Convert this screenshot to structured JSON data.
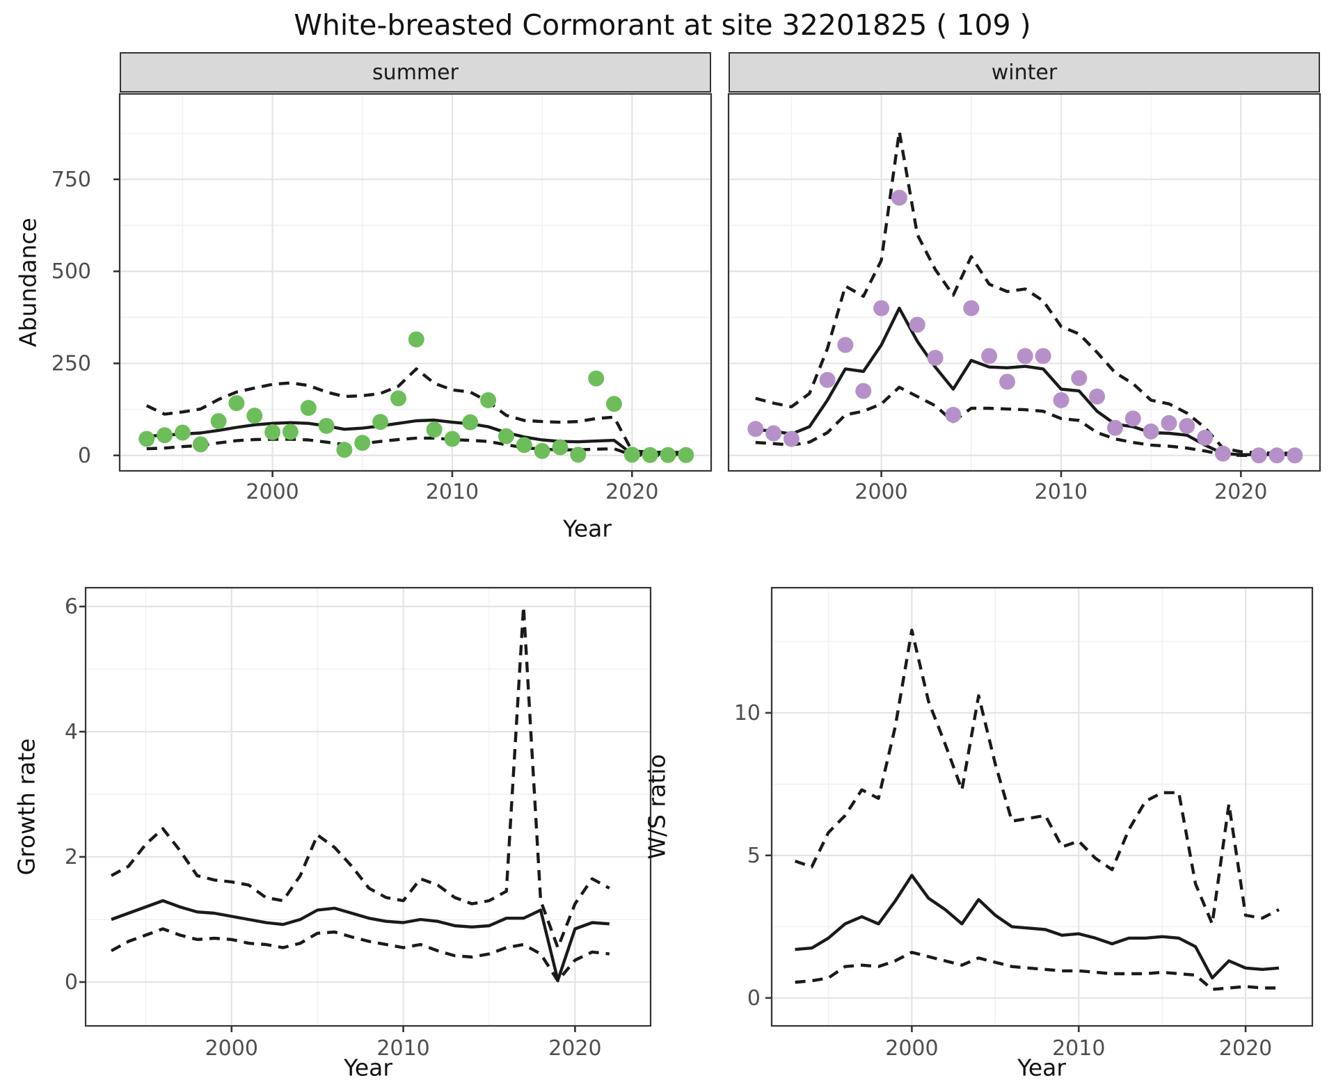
{
  "page": {
    "title": "White-breasted Cormorant at site 32201825 ( 109 )"
  },
  "colors": {
    "summer_point": "#6dbe5b",
    "winter_point": "#b691c9",
    "line": "#1a1a1a",
    "grid_major": "#e4e4e4",
    "grid_minor": "#f1f1f1",
    "strip_bg": "#d9d9d9",
    "panel_border": "#333333",
    "tick_text": "#4d4d4d"
  },
  "chart_data": [
    {
      "id": "abundance",
      "type": "line+scatter",
      "ylabel": "Abundance",
      "xlabel": "Year",
      "legend_position": "none",
      "grid": true,
      "x_ticks": [
        2000,
        2010,
        2020
      ],
      "x_minor": [
        1995,
        2005,
        2015
      ],
      "y_ticks": [
        0,
        250,
        500,
        750
      ],
      "y_minor": [
        125,
        375,
        625,
        875
      ],
      "xlim": [
        1991.5,
        2024.4
      ],
      "ylim": [
        -42,
        982
      ],
      "facets": [
        {
          "label": "summer",
          "point_color": "#6dbe5b",
          "points": {
            "years": [
              1993,
              1994,
              1995,
              1996,
              1997,
              1998,
              1999,
              2000,
              2001,
              2002,
              2003,
              2004,
              2005,
              2006,
              2007,
              2008,
              2009,
              2010,
              2011,
              2012,
              2013,
              2014,
              2015,
              2016,
              2017,
              2018,
              2019,
              2020,
              2021,
              2022,
              2023
            ],
            "values": [
              45,
              55,
              62,
              30,
              93,
              142,
              108,
              63,
              64,
              129,
              80,
              15,
              34,
              91,
              155,
              315,
              70,
              45,
              90,
              150,
              52,
              28,
              12,
              22,
              2,
              209,
              140,
              2,
              1,
              1,
              1
            ]
          },
          "fit": {
            "year_start": 1993,
            "values": [
              52,
              55,
              58,
              61,
              68,
              76,
              83,
              87,
              89,
              87,
              80,
              71,
              74,
              80,
              87,
              94,
              96,
              90,
              86,
              78,
              62,
              50,
              42,
              38,
              37,
              39,
              41,
              4,
              3,
              3,
              3
            ]
          },
          "upper": {
            "year_start": 1993,
            "values": [
              135,
              112,
              118,
              126,
              152,
              172,
              183,
              193,
              197,
              190,
              172,
              160,
              162,
              168,
              188,
              235,
              196,
              178,
              172,
              146,
              109,
              95,
              92,
              90,
              92,
              100,
              104,
              12,
              9,
              8,
              8
            ]
          },
          "lower": {
            "year_start": 1993,
            "values": [
              18,
              20,
              24,
              27,
              34,
              40,
              43,
              44,
              44,
              42,
              36,
              30,
              32,
              38,
              43,
              47,
              47,
              43,
              41,
              38,
              29,
              21,
              17,
              15,
              15,
              17,
              18,
              1,
              0,
              0,
              0
            ]
          }
        },
        {
          "label": "winter",
          "point_color": "#b691c9",
          "points": {
            "years": [
              1993,
              1994,
              1995,
              1997,
              1998,
              1999,
              2000,
              2001,
              2002,
              2003,
              2004,
              2005,
              2006,
              2007,
              2008,
              2009,
              2010,
              2011,
              2012,
              2013,
              2014,
              2015,
              2016,
              2017,
              2018,
              2019,
              2021,
              2022,
              2023
            ],
            "values": [
              72,
              60,
              45,
              205,
              300,
              175,
              400,
              700,
              355,
              265,
              110,
              400,
              270,
              200,
              270,
              270,
              150,
              210,
              160,
              75,
              100,
              65,
              88,
              80,
              48,
              5,
              0,
              0,
              0
            ]
          },
          "fit": {
            "year_start": 1993,
            "values": [
              70,
              66,
              58,
              78,
              150,
              235,
              228,
              300,
              400,
              310,
              240,
              180,
              258,
              240,
              238,
              242,
              235,
              180,
              175,
              120,
              85,
              78,
              62,
              60,
              55,
              28,
              5,
              2,
              2,
              2,
              2
            ]
          },
          "upper": {
            "year_start": 1993,
            "values": [
              155,
              142,
              132,
              168,
              290,
              460,
              432,
              530,
              880,
              600,
              505,
              435,
              540,
              465,
              445,
              452,
              420,
              350,
              330,
              280,
              225,
              195,
              150,
              140,
              115,
              75,
              20,
              10,
              7,
              6,
              6
            ]
          },
          "lower": {
            "year_start": 1993,
            "values": [
              35,
              32,
              28,
              36,
              62,
              110,
              120,
              140,
              185,
              160,
              135,
              92,
              128,
              128,
              126,
              124,
              120,
              100,
              95,
              62,
              45,
              35,
              28,
              25,
              20,
              12,
              2,
              0,
              0,
              0,
              0
            ]
          }
        }
      ]
    },
    {
      "id": "growth_rate",
      "type": "line",
      "ylabel": "Growth rate",
      "xlabel": "Year",
      "grid": true,
      "x_ticks": [
        2000,
        2010,
        2020
      ],
      "x_minor": [
        1995,
        2005,
        2015
      ],
      "y_ticks": [
        0,
        2,
        4,
        6
      ],
      "y_minor": [
        1,
        3,
        5
      ],
      "xlim": [
        1991.5,
        2024.4
      ],
      "ylim": [
        -0.7,
        6.3
      ],
      "series": {
        "year_start": 1993,
        "fit": [
          1.0,
          1.1,
          1.2,
          1.3,
          1.2,
          1.12,
          1.1,
          1.05,
          1.0,
          0.95,
          0.92,
          1.0,
          1.15,
          1.18,
          1.1,
          1.02,
          0.97,
          0.95,
          1.0,
          0.97,
          0.9,
          0.88,
          0.9,
          1.02,
          1.02,
          1.15,
          0.03,
          0.85,
          0.95,
          0.93
        ],
        "upper": [
          1.7,
          1.85,
          2.2,
          2.45,
          2.1,
          1.7,
          1.63,
          1.6,
          1.55,
          1.35,
          1.3,
          1.7,
          2.35,
          2.15,
          1.85,
          1.5,
          1.35,
          1.3,
          1.65,
          1.55,
          1.35,
          1.25,
          1.3,
          1.45,
          6.0,
          1.3,
          0.55,
          1.25,
          1.65,
          1.5
        ],
        "lower": [
          0.5,
          0.65,
          0.75,
          0.85,
          0.75,
          0.68,
          0.7,
          0.68,
          0.62,
          0.6,
          0.55,
          0.62,
          0.78,
          0.8,
          0.72,
          0.65,
          0.6,
          0.55,
          0.6,
          0.5,
          0.42,
          0.4,
          0.45,
          0.55,
          0.6,
          0.45,
          0.02,
          0.35,
          0.48,
          0.45
        ]
      }
    },
    {
      "id": "ws_ratio",
      "type": "line",
      "ylabel": "W/S ratio",
      "xlabel": "Year",
      "grid": true,
      "x_ticks": [
        2000,
        2010,
        2020
      ],
      "x_minor": [
        1995,
        2005,
        2015
      ],
      "y_ticks": [
        0,
        5,
        10
      ],
      "y_minor": [
        2.5,
        7.5,
        12.5
      ],
      "xlim": [
        1991.6,
        2024.0
      ],
      "ylim": [
        -0.98,
        14.39
      ],
      "series": {
        "year_start": 1993,
        "fit": [
          1.7,
          1.75,
          2.1,
          2.6,
          2.85,
          2.6,
          3.4,
          4.3,
          3.5,
          3.1,
          2.6,
          3.45,
          2.9,
          2.5,
          2.45,
          2.4,
          2.2,
          2.25,
          2.1,
          1.9,
          2.1,
          2.1,
          2.15,
          2.1,
          1.8,
          0.7,
          1.3,
          1.05,
          1.0,
          1.05
        ],
        "upper": [
          4.8,
          4.6,
          5.8,
          6.4,
          7.3,
          7.0,
          9.5,
          12.9,
          10.4,
          8.9,
          7.3,
          10.6,
          8.2,
          6.2,
          6.3,
          6.4,
          5.3,
          5.5,
          4.9,
          4.5,
          5.9,
          6.9,
          7.2,
          7.2,
          4.0,
          2.6,
          6.8,
          2.9,
          2.8,
          3.1
        ],
        "lower": [
          0.55,
          0.6,
          0.7,
          1.1,
          1.15,
          1.1,
          1.3,
          1.6,
          1.45,
          1.3,
          1.15,
          1.4,
          1.25,
          1.1,
          1.05,
          1.0,
          0.95,
          0.95,
          0.9,
          0.85,
          0.85,
          0.85,
          0.9,
          0.85,
          0.8,
          0.3,
          0.35,
          0.4,
          0.35,
          0.35
        ]
      }
    }
  ]
}
